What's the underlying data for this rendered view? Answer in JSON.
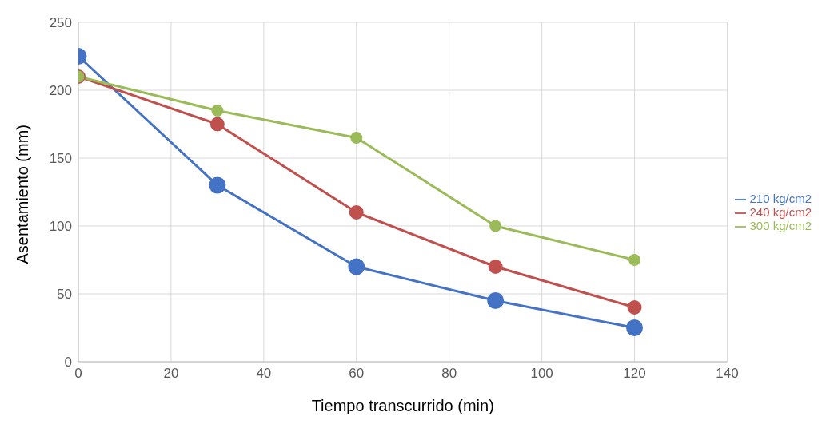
{
  "chart_data": {
    "type": "line",
    "xlabel": "Tiempo transcurrido (min)",
    "ylabel": "Asentamiento (mm)",
    "x": [
      0,
      30,
      60,
      90,
      120
    ],
    "series": [
      {
        "name": "210 kg/cm2",
        "color": "#4472c4",
        "values": [
          225,
          130,
          70,
          45,
          25
        ]
      },
      {
        "name": "240 kg/cm2",
        "color": "#c0504d",
        "values": [
          210,
          175,
          110,
          70,
          40
        ]
      },
      {
        "name": "300 kg/cm2",
        "color": "#9bbb59",
        "values": [
          210,
          185,
          165,
          100,
          75
        ]
      }
    ],
    "xlim": [
      0,
      140
    ],
    "xticks": [
      0,
      20,
      40,
      60,
      80,
      100,
      120,
      140
    ],
    "ylim": [
      0,
      250
    ],
    "yticks": [
      0,
      50,
      100,
      150,
      200,
      250
    ],
    "grid": true,
    "legend": "right",
    "marker": "circle",
    "line_style": "solid"
  }
}
